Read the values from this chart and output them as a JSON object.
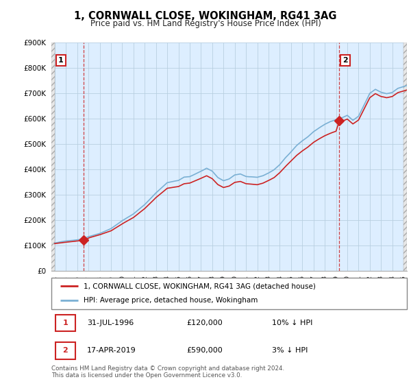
{
  "title": "1, CORNWALL CLOSE, WOKINGHAM, RG41 3AG",
  "subtitle": "Price paid vs. HM Land Registry's House Price Index (HPI)",
  "legend_line1": "1, CORNWALL CLOSE, WOKINGHAM, RG41 3AG (detached house)",
  "legend_line2": "HPI: Average price, detached house, Wokingham",
  "footer_line1": "Contains HM Land Registry data © Crown copyright and database right 2024.",
  "footer_line2": "This data is licensed under the Open Government Licence v3.0.",
  "sale1_date": 1996.58,
  "sale1_price": 120000,
  "sale2_date": 2019.29,
  "sale2_price": 590000,
  "sale1_row": "31-JUL-1996",
  "sale1_price_str": "£120,000",
  "sale1_hpi": "10% ↓ HPI",
  "sale2_row": "17-APR-2019",
  "sale2_price_str": "£590,000",
  "sale2_hpi": "3% ↓ HPI",
  "ylim": [
    0,
    900000
  ],
  "xlim_start": 1993.7,
  "xlim_end": 2025.3,
  "red_color": "#cc2222",
  "blue_color": "#7ab0d4",
  "bg_color": "#ddeeff",
  "hatch_fill": "#e8e8e8",
  "grid_color": "#b8cfe0"
}
